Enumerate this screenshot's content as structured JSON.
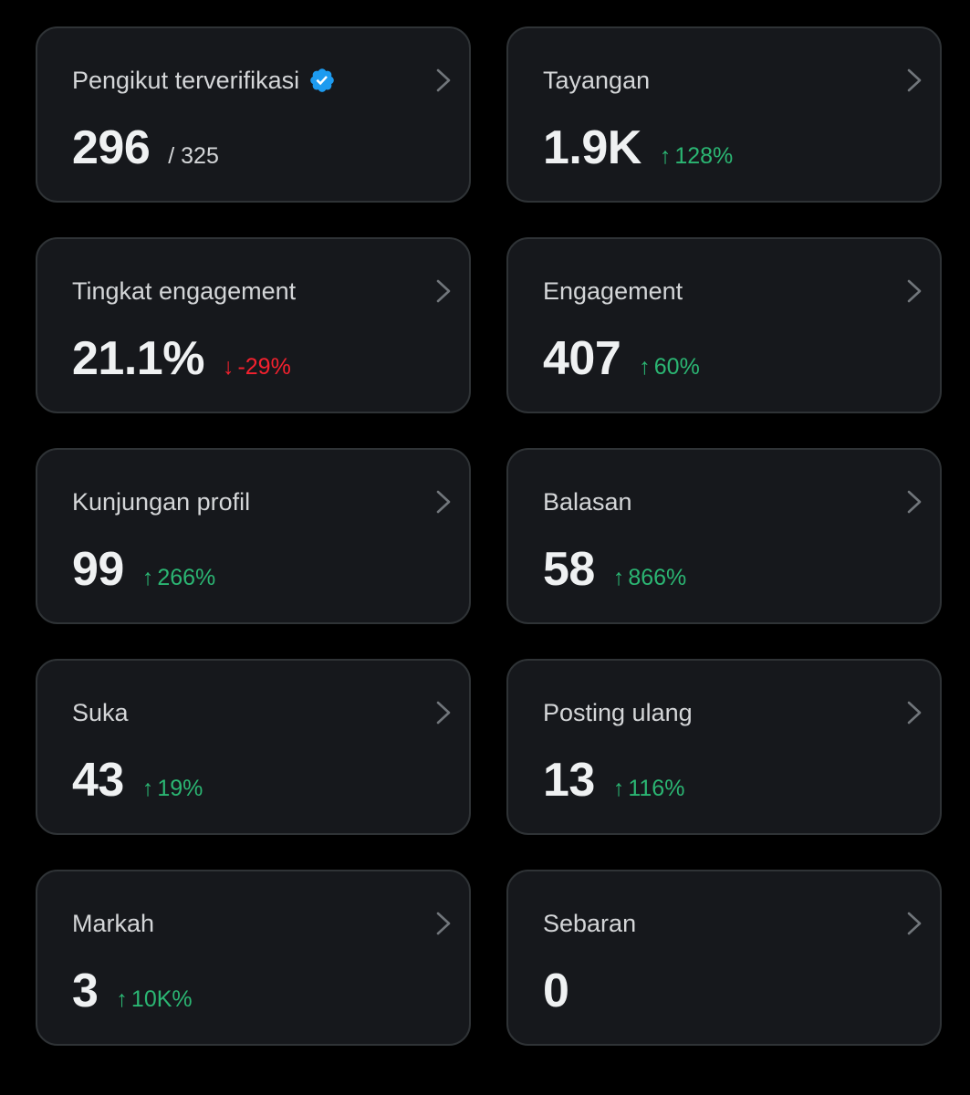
{
  "colors": {
    "background": "#000000",
    "card_bg": "#16181c",
    "card_border": "#2f3336",
    "positive": "#2bb673",
    "negative": "#f4212e",
    "verified_badge": "#1d9bf0"
  },
  "cards": [
    {
      "title": "Pengikut terverifikasi",
      "value": "296",
      "suffix": "/ 325",
      "icon": "verified-badge-icon"
    },
    {
      "title": "Tayangan",
      "value": "1.9K",
      "change": "128%",
      "direction": "up"
    },
    {
      "title": "Tingkat engagement",
      "value": "21.1%",
      "change": "-29%",
      "direction": "down"
    },
    {
      "title": "Engagement",
      "value": "407",
      "change": "60%",
      "direction": "up"
    },
    {
      "title": "Kunjungan profil",
      "value": "99",
      "change": "266%",
      "direction": "up"
    },
    {
      "title": "Balasan",
      "value": "58",
      "change": "866%",
      "direction": "up"
    },
    {
      "title": "Suka",
      "value": "43",
      "change": "19%",
      "direction": "up"
    },
    {
      "title": "Posting ulang",
      "value": "13",
      "change": "116%",
      "direction": "up"
    },
    {
      "title": "Markah",
      "value": "3",
      "change": "10K%",
      "direction": "up"
    },
    {
      "title": "Sebaran",
      "value": "0"
    }
  ]
}
